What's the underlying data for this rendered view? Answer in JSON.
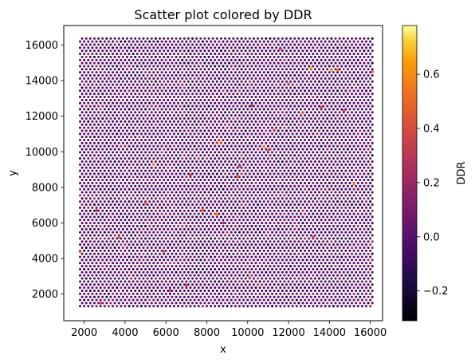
{
  "chart_data": {
    "type": "scatter",
    "title": "Scatter plot colored by DDR",
    "xlabel": "x",
    "ylabel": "y",
    "xlim": [
      1000,
      16600
    ],
    "ylim": [
      500,
      17100
    ],
    "xticks": [
      2000,
      4000,
      6000,
      8000,
      10000,
      12000,
      14000,
      16000
    ],
    "yticks": [
      2000,
      4000,
      6000,
      8000,
      10000,
      12000,
      14000,
      16000
    ],
    "colormap": "inferno",
    "colorbar": {
      "label": "DDR",
      "range": [
        -0.31,
        0.78
      ],
      "ticks": [
        -0.2,
        0.0,
        0.2,
        0.4,
        0.6
      ],
      "tick_labels": [
        "−0.2",
        "0.0",
        "0.2",
        "0.4",
        "0.6"
      ]
    },
    "grid": {
      "x_start": 1800,
      "x_end": 16150,
      "y_start": 1320,
      "y_end": 16420,
      "spacing_x": 200,
      "spacing_y": 173,
      "row_offset_x": 100,
      "baseline_value": 0.0
    },
    "highlighted_points": [
      {
        "x": 13100,
        "y": 14700,
        "v": 0.65
      },
      {
        "x": 14100,
        "y": 14600,
        "v": 0.6
      },
      {
        "x": 14400,
        "y": 14600,
        "v": 0.55
      },
      {
        "x": 16100,
        "y": 14500,
        "v": 0.5
      },
      {
        "x": 10800,
        "y": 10300,
        "v": 0.55
      },
      {
        "x": 11000,
        "y": 10100,
        "v": 0.5
      },
      {
        "x": 8700,
        "y": 10500,
        "v": 0.45
      },
      {
        "x": 8500,
        "y": 10500,
        "v": 0.4
      },
      {
        "x": 5400,
        "y": 9300,
        "v": 0.6
      },
      {
        "x": 7200,
        "y": 8700,
        "v": 0.4
      },
      {
        "x": 9500,
        "y": 8600,
        "v": 0.5
      },
      {
        "x": 9600,
        "y": 9200,
        "v": 0.35
      },
      {
        "x": 15200,
        "y": 8200,
        "v": 0.55
      },
      {
        "x": 5000,
        "y": 7100,
        "v": 0.5
      },
      {
        "x": 8500,
        "y": 6500,
        "v": 0.6
      },
      {
        "x": 7800,
        "y": 6700,
        "v": 0.45
      },
      {
        "x": 8800,
        "y": 6000,
        "v": 0.35
      },
      {
        "x": 3700,
        "y": 5200,
        "v": 0.5
      },
      {
        "x": 5900,
        "y": 4400,
        "v": 0.45
      },
      {
        "x": 13200,
        "y": 5200,
        "v": 0.4
      },
      {
        "x": 15100,
        "y": 4600,
        "v": 0.45
      },
      {
        "x": 10100,
        "y": 2900,
        "v": 0.4
      },
      {
        "x": 7000,
        "y": 2500,
        "v": 0.4
      },
      {
        "x": 2800,
        "y": 1500,
        "v": 0.45
      },
      {
        "x": 12700,
        "y": 12200,
        "v": 0.45
      },
      {
        "x": 13600,
        "y": 12500,
        "v": 0.4
      },
      {
        "x": 14700,
        "y": 12300,
        "v": 0.35
      },
      {
        "x": 11300,
        "y": 11200,
        "v": 0.35
      },
      {
        "x": 2600,
        "y": 6700,
        "v": 0.35
      },
      {
        "x": 1800,
        "y": 4400,
        "v": 0.45
      },
      {
        "x": 6200,
        "y": 2200,
        "v": 0.3
      },
      {
        "x": 12000,
        "y": 13800,
        "v": 0.35
      },
      {
        "x": 11600,
        "y": 15800,
        "v": 0.3
      },
      {
        "x": 10200,
        "y": 12600,
        "v": 0.35
      }
    ]
  }
}
